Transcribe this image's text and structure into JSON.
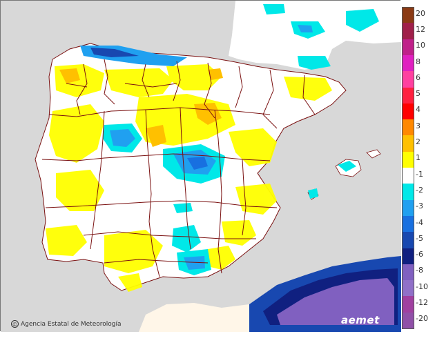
{
  "map": {
    "credit_text": "Agencia Estatal de Meteorología",
    "credit_symbol": "©",
    "brand_text": "aemet",
    "colors": {
      "sea": "#d8d8d8",
      "land": "#ffffff",
      "border": "#7a1010",
      "north_africa": "#fff6e8"
    }
  },
  "legend": {
    "items": [
      {
        "label": "20",
        "color": "#8b3a14"
      },
      {
        "label": "12",
        "color": "#a0204a"
      },
      {
        "label": "10",
        "color": "#c0208a"
      },
      {
        "label": "8",
        "color": "#e020c0"
      },
      {
        "label": "6",
        "color": "#ff40a0"
      },
      {
        "label": "5",
        "color": "#ff2040"
      },
      {
        "label": "4",
        "color": "#ff0000"
      },
      {
        "label": "3",
        "color": "#ff8800"
      },
      {
        "label": "2",
        "color": "#ffc000"
      },
      {
        "label": "1",
        "color": "#ffff00"
      },
      {
        "label": "-1",
        "color": "#ffffff"
      },
      {
        "label": "-2",
        "color": "#00e8e8"
      },
      {
        "label": "-3",
        "color": "#20a0f0"
      },
      {
        "label": "-4",
        "color": "#1870e0"
      },
      {
        "label": "-5",
        "color": "#1848b0"
      },
      {
        "label": "-6",
        "color": "#102080"
      },
      {
        "label": "-8",
        "color": "#8060c0"
      },
      {
        "label": "-10",
        "color": "#9070c8"
      },
      {
        "label": "-12",
        "color": "#a040a0"
      },
      {
        "label": "-20",
        "color": "#9050a8"
      }
    ]
  }
}
